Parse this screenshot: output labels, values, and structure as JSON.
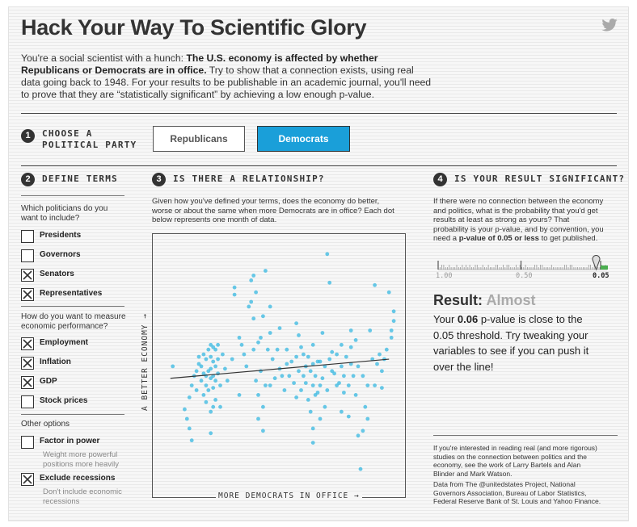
{
  "title": "Hack Your Way To Scientific Glory",
  "intro": {
    "part1": "You're a social scientist with a hunch: ",
    "bold": "The U.S. economy is affected by whether Republicans or Democrats are in office.",
    "part2": " Try to show that a connection exists, using real data going back to 1948. For your results to be publishable in an academic journal, you'll need to prove that they are “statistically significant” by achieving a low enough p-value."
  },
  "step1": {
    "num": "1",
    "line1": "CHOOSE A",
    "line2": "POLITICAL PARTY"
  },
  "party_buttons": {
    "republicans": "Republicans",
    "democrats": "Democrats",
    "selected": "democrats"
  },
  "step2": {
    "num": "2",
    "title": "DEFINE TERMS",
    "q1_line1": "Which politicians do you",
    "q1_line2": "want to include?",
    "politicians": [
      {
        "label": "Presidents",
        "checked": false
      },
      {
        "label": "Governors",
        "checked": false
      },
      {
        "label": "Senators",
        "checked": true
      },
      {
        "label": "Representatives",
        "checked": true
      }
    ],
    "q2_line1": "How do you want to measure",
    "q2_line2": "economic performance?",
    "measures": [
      {
        "label": "Employment",
        "checked": true
      },
      {
        "label": "Inflation",
        "checked": true
      },
      {
        "label": "GDP",
        "checked": true
      },
      {
        "label": "Stock prices",
        "checked": false
      }
    ],
    "other_title": "Other options",
    "other": [
      {
        "label": "Factor in power",
        "checked": false,
        "sub1": "Weight more powerful",
        "sub2": "positions more heavily"
      },
      {
        "label": "Exclude recessions",
        "checked": true,
        "sub1": "Don't include economic",
        "sub2": "recessions"
      }
    ]
  },
  "step3": {
    "num": "3",
    "title": "IS THERE A RELATIONSHIP?",
    "line1": "Given how you've defined your terms, does the economy do better,",
    "line2": "worse or about the same when more Democrats are in office? Each dot",
    "line3": "below represents one month of data.",
    "y_axis": "A BETTER ECONOMY →",
    "x_axis": "MORE DEMOCRATS IN OFFICE →"
  },
  "step4": {
    "num": "4",
    "title": "IS YOUR RESULT SIGNIFICANT?",
    "line1": "If there were no connection between the economy",
    "line2": "and politics, what is the probability that you'd get",
    "line3": "results at least as strong as yours? That",
    "line4": "probability is your p-value, and by convention, you",
    "line5a": "need a ",
    "line5b": "p-value of 0.05 or less",
    "line5c": " to get published.",
    "slider": {
      "labels": [
        "1.00",
        "0.50",
        "0.05"
      ],
      "value": 0.06
    },
    "result_label": "Result:",
    "result_status": "Almost",
    "result_line1a": "Your ",
    "result_line1b": "0.06",
    "result_line1c": " p-value is close to the",
    "result_line2": "0.05 threshold. Try tweaking your",
    "result_line3": "variables to see if you can push it",
    "result_line4": "over the line!",
    "foot1": "If you're interested in reading real (and more rigorous)",
    "foot2": "studies on the connection between politics and the",
    "foot3": "economy, see the work of Larry Bartels and Alan",
    "foot4": "Blinder and Mark Watson.",
    "foot5": "Data from The @unitedstates Project, National",
    "foot6": "Governors Association, Bureau of Labor Statistics,",
    "foot7": "Federal Reserve Bank of St. Louis and Yahoo Finance."
  },
  "colors": {
    "accent": "#1a9fd9",
    "dot": "#2ab4e0",
    "text": "#222222"
  },
  "chart_data": {
    "type": "scatter",
    "xlabel": "MORE DEMOCRATS IN OFFICE →",
    "ylabel": "A BETTER ECONOMY →",
    "xlim": [
      0,
      100
    ],
    "ylim": [
      0,
      100
    ],
    "trend": {
      "x": [
        4,
        96
      ],
      "y": [
        43,
        51
      ]
    },
    "points": [
      [
        5,
        48
      ],
      [
        10,
        30
      ],
      [
        11,
        26
      ],
      [
        12,
        35
      ],
      [
        13,
        40
      ],
      [
        12,
        22
      ],
      [
        13,
        17
      ],
      [
        14,
        44
      ],
      [
        15,
        46
      ],
      [
        15,
        38
      ],
      [
        16,
        49
      ],
      [
        16,
        52
      ],
      [
        17,
        48
      ],
      [
        17,
        42
      ],
      [
        18,
        53
      ],
      [
        18,
        45
      ],
      [
        18,
        36
      ],
      [
        19,
        51
      ],
      [
        19,
        44
      ],
      [
        19,
        40
      ],
      [
        19,
        33
      ],
      [
        20,
        55
      ],
      [
        20,
        46
      ],
      [
        20,
        38
      ],
      [
        21,
        57
      ],
      [
        21,
        52
      ],
      [
        21,
        47
      ],
      [
        21,
        43
      ],
      [
        21,
        29
      ],
      [
        21,
        20
      ],
      [
        22,
        56
      ],
      [
        22,
        50
      ],
      [
        22,
        44
      ],
      [
        22,
        39
      ],
      [
        22,
        31
      ],
      [
        23,
        55
      ],
      [
        23,
        48
      ],
      [
        23,
        42
      ],
      [
        23,
        34
      ],
      [
        24,
        57
      ],
      [
        24,
        51
      ],
      [
        24,
        45
      ],
      [
        25,
        40
      ],
      [
        25,
        31
      ],
      [
        26,
        53
      ],
      [
        27,
        47
      ],
      [
        28,
        42
      ],
      [
        30,
        51
      ],
      [
        31,
        81
      ],
      [
        31,
        78
      ],
      [
        33,
        60
      ],
      [
        33,
        36
      ],
      [
        34,
        57
      ],
      [
        35,
        53
      ],
      [
        36,
        48
      ],
      [
        37,
        73
      ],
      [
        38,
        75
      ],
      [
        38,
        84
      ],
      [
        39,
        68
      ],
      [
        39,
        55
      ],
      [
        39,
        86
      ],
      [
        40,
        79
      ],
      [
        40,
        42
      ],
      [
        41,
        58
      ],
      [
        41,
        36
      ],
      [
        41,
        26
      ],
      [
        42,
        60
      ],
      [
        42,
        46
      ],
      [
        43,
        69
      ],
      [
        43,
        31
      ],
      [
        43,
        21
      ],
      [
        44,
        88
      ],
      [
        44,
        40
      ],
      [
        45,
        55
      ],
      [
        46,
        73
      ],
      [
        46,
        62
      ],
      [
        46,
        40
      ],
      [
        47,
        51
      ],
      [
        48,
        43
      ],
      [
        49,
        55
      ],
      [
        50,
        64
      ],
      [
        50,
        47
      ],
      [
        51,
        44
      ],
      [
        52,
        38
      ],
      [
        53,
        55
      ],
      [
        53,
        49
      ],
      [
        54,
        44
      ],
      [
        55,
        50
      ],
      [
        56,
        41
      ],
      [
        57,
        66
      ],
      [
        57,
        52
      ],
      [
        57,
        35
      ],
      [
        58,
        61
      ],
      [
        58,
        46
      ],
      [
        59,
        56
      ],
      [
        59,
        38
      ],
      [
        60,
        53
      ],
      [
        60,
        44
      ],
      [
        61,
        48
      ],
      [
        61,
        41
      ],
      [
        62,
        52
      ],
      [
        62,
        34
      ],
      [
        63,
        46
      ],
      [
        63,
        29
      ],
      [
        64,
        57
      ],
      [
        64,
        49
      ],
      [
        64,
        40
      ],
      [
        64,
        22
      ],
      [
        64,
        16
      ],
      [
        65,
        44
      ],
      [
        65,
        36
      ],
      [
        66,
        50
      ],
      [
        66,
        37
      ],
      [
        67,
        50
      ],
      [
        67,
        40
      ],
      [
        67,
        26
      ],
      [
        68,
        62
      ],
      [
        68,
        43
      ],
      [
        69,
        48
      ],
      [
        69,
        31
      ],
      [
        70,
        95
      ],
      [
        70,
        38
      ],
      [
        71,
        83
      ],
      [
        71,
        51
      ],
      [
        72,
        54
      ],
      [
        72,
        46
      ],
      [
        73,
        45
      ],
      [
        74,
        53
      ],
      [
        74,
        40
      ],
      [
        75,
        41
      ],
      [
        76,
        57
      ],
      [
        76,
        48
      ],
      [
        76,
        29
      ],
      [
        77,
        44
      ],
      [
        77,
        37
      ],
      [
        78,
        52
      ],
      [
        79,
        40
      ],
      [
        79,
        27
      ],
      [
        80,
        63
      ],
      [
        80,
        56
      ],
      [
        80,
        49
      ],
      [
        81,
        44
      ],
      [
        82,
        59
      ],
      [
        82,
        36
      ],
      [
        83,
        48
      ],
      [
        83,
        19
      ],
      [
        84,
        5
      ],
      [
        85,
        44
      ],
      [
        85,
        21
      ],
      [
        86,
        31
      ],
      [
        87,
        40
      ],
      [
        87,
        26
      ],
      [
        88,
        63
      ],
      [
        89,
        51
      ],
      [
        90,
        40
      ],
      [
        90,
        82
      ],
      [
        91,
        49
      ],
      [
        92,
        53
      ],
      [
        93,
        46
      ],
      [
        93,
        39
      ],
      [
        94,
        51
      ],
      [
        95,
        55
      ],
      [
        96,
        79
      ],
      [
        97,
        60
      ],
      [
        97,
        63
      ],
      [
        98,
        71
      ],
      [
        98,
        67
      ]
    ]
  }
}
